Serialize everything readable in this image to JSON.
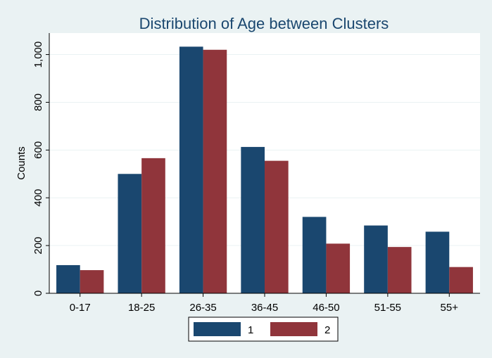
{
  "chart_data": {
    "type": "bar",
    "title": "Distribution of Age between Clusters",
    "ylabel": "Counts",
    "xlabel": "",
    "categories": [
      "0-17",
      "18-25",
      "26-35",
      "36-45",
      "46-50",
      "51-55",
      "55+"
    ],
    "series": [
      {
        "name": "1",
        "values": [
          118,
          500,
          1033,
          613,
          320,
          284,
          258
        ]
      },
      {
        "name": "2",
        "values": [
          97,
          566,
          1020,
          555,
          208,
          194,
          110
        ]
      }
    ],
    "ylim": [
      0,
      1090
    ],
    "yticks": [
      0,
      200,
      400,
      600,
      800,
      1000
    ],
    "ytick_labels": [
      "0",
      "200",
      "400",
      "600",
      "800",
      "1,000"
    ],
    "grid": true,
    "legend_position": "bottom",
    "colors": {
      "series_1": "#1a476f",
      "series_2": "#90353b",
      "background": "#eaf2f3",
      "plot_background": "#ffffff",
      "grid": "#eaf2f3",
      "title": "#1a476f"
    }
  }
}
